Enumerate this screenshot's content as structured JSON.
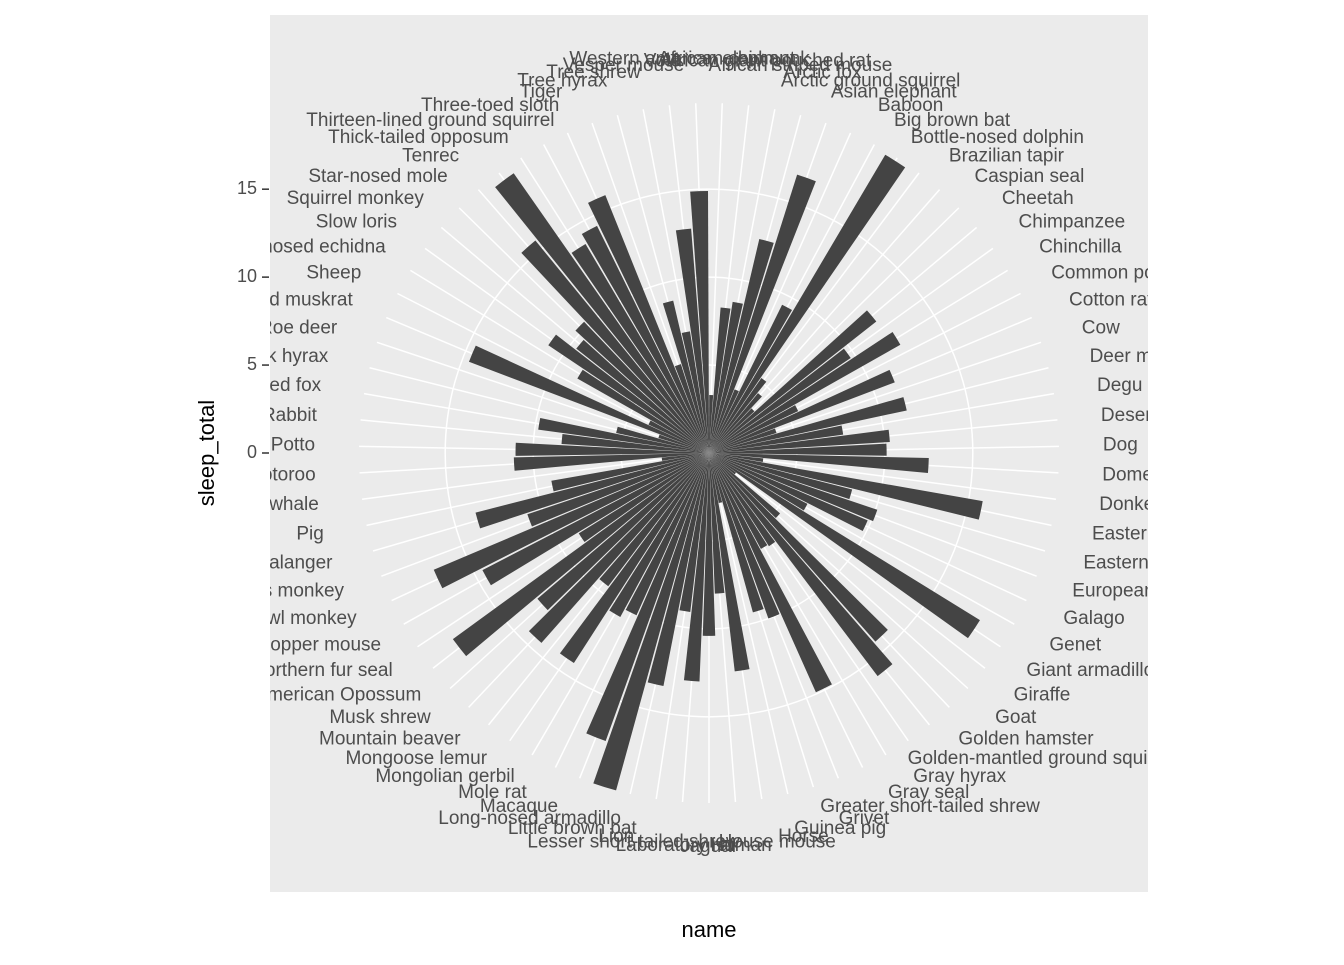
{
  "chart_data": {
    "type": "polar-bar",
    "x_label": "name",
    "y_label": "sleep_total",
    "color": "#444444",
    "categories": [
      "African elephant",
      "African giant pouched rat",
      "African striped mouse",
      "Arctic fox",
      "Arctic ground squirrel",
      "Asian elephant",
      "Baboon",
      "Big brown bat",
      "Bottle-nosed dolphin",
      "Brazilian tapir",
      "Caspian seal",
      "Cheetah",
      "Chimpanzee",
      "Chinchilla",
      "Common porpoise",
      "Cotton rat",
      "Cow",
      "Deer mouse",
      "Degu",
      "Desert hedgehog",
      "Dog",
      "Domestic cat",
      "Donkey",
      "Eastern american chipmunk",
      "Eastern american mole",
      "European hedgehog",
      "Galago",
      "Genet",
      "Giant armadillo",
      "Giraffe",
      "Goat",
      "Golden hamster",
      "Golden-mantled ground squirrel",
      "Gray hyrax",
      "Gray seal",
      "Greater short-tailed shrew",
      "Grivet",
      "Guinea pig",
      "Horse",
      "House mouse",
      "Human",
      "Jaguar",
      "Laboratory rat",
      "Lesser short-tailed shrew",
      "Lion",
      "Little brown bat",
      "Long-nosed armadillo",
      "Macaque",
      "Mole rat",
      "Mongolian gerbil",
      "Mongoose lemur",
      "Mountain beaver",
      "Musk shrew",
      "North American Opossum",
      "Northern fur seal",
      "Northern grasshopper mouse",
      "Owl monkey",
      "Patas monkey",
      "Phalanger",
      "Pig",
      "Pilot whale",
      "Potoroo",
      "Potto",
      "Rabbit",
      "Red fox",
      "Rock hyrax",
      "Roe deer",
      "Round-tailed muskrat",
      "Sheep",
      "Short-nosed echidna",
      "Slow loris",
      "Squirrel monkey",
      "Star-nosed mole",
      "Tenrec",
      "Thick-tailed opposum",
      "Thirteen-lined ground squirrel",
      "Three-toed sloth",
      "Tiger",
      "Tree hyrax",
      "Tree shrew",
      "Vesper mouse",
      "Vole",
      "Western american chipmunk"
    ],
    "values": [
      3.3,
      8.3,
      8.7,
      12.5,
      16.6,
      3.9,
      9.4,
      19.7,
      5.2,
      4.4,
      3.5,
      12.1,
      9.7,
      12.5,
      5.6,
      11.3,
      4.0,
      11.5,
      7.7,
      10.3,
      10.1,
      12.5,
      3.1,
      15.8,
      8.4,
      10.1,
      9.8,
      6.3,
      18.1,
      1.9,
      5.3,
      14.3,
      15.9,
      6.3,
      6.2,
      14.9,
      10.0,
      9.4,
      2.9,
      12.5,
      8.0,
      10.4,
      13.0,
      9.1,
      13.5,
      19.9,
      17.4,
      10.1,
      10.6,
      14.2,
      9.5,
      14.4,
      12.8,
      18.0,
      8.7,
      14.5,
      17.0,
      10.9,
      13.7,
      9.1,
      2.7,
      11.1,
      11.0,
      8.4,
      9.8,
      5.4,
      3.0,
      14.6,
      3.8,
      8.6,
      11.0,
      9.6,
      10.3,
      15.6,
      19.4,
      13.8,
      14.4,
      15.8,
      5.3,
      8.9,
      7.0,
      12.8,
      14.9
    ],
    "ylim": [
      0,
      19.9
    ],
    "yticks": [
      0,
      5,
      10,
      15
    ],
    "grid": true
  }
}
